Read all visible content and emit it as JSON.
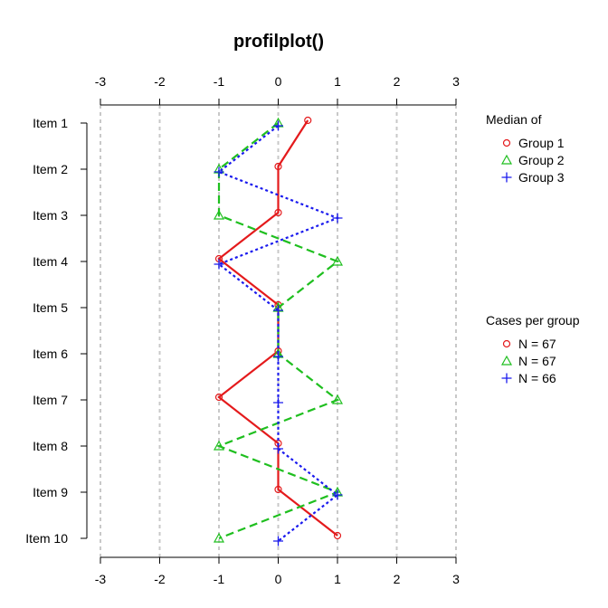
{
  "chart_data": {
    "type": "line",
    "title": "profilplot()",
    "xlim": [
      -3,
      3
    ],
    "x_ticks": [
      "-3",
      "-2",
      "-1",
      "0",
      "1",
      "2",
      "3"
    ],
    "items": [
      "Item 1",
      "Item 2",
      "Item 3",
      "Item 4",
      "Item 5",
      "Item 6",
      "Item 7",
      "Item 8",
      "Item 9",
      "Item 10"
    ],
    "grid": true,
    "orientation": "horizontal-values-vertical-items",
    "series": [
      {
        "name": "Group 1",
        "color": "#e41a1c",
        "marker": "circle",
        "line": "solid",
        "values": [
          0.5,
          0,
          0,
          -1,
          0,
          0,
          -1,
          0,
          0,
          1
        ]
      },
      {
        "name": "Group 2",
        "color": "#1fbf1f",
        "marker": "triangle",
        "line": "dashed",
        "values": [
          0,
          -1,
          -1,
          1,
          0,
          0,
          1,
          -1,
          1,
          -1
        ]
      },
      {
        "name": "Group 3",
        "color": "#1a1aee",
        "marker": "plus",
        "line": "dotted",
        "values": [
          0,
          -1,
          1,
          -1,
          0,
          0,
          0,
          0,
          1,
          0
        ]
      }
    ],
    "legend_median": {
      "title": "Median of",
      "entries": [
        "Group 1",
        "Group 2",
        "Group 3"
      ]
    },
    "legend_cases": {
      "title": "Cases per group",
      "entries": [
        "N = 67",
        "N = 67",
        "N = 66"
      ]
    },
    "legend_position": "right"
  }
}
